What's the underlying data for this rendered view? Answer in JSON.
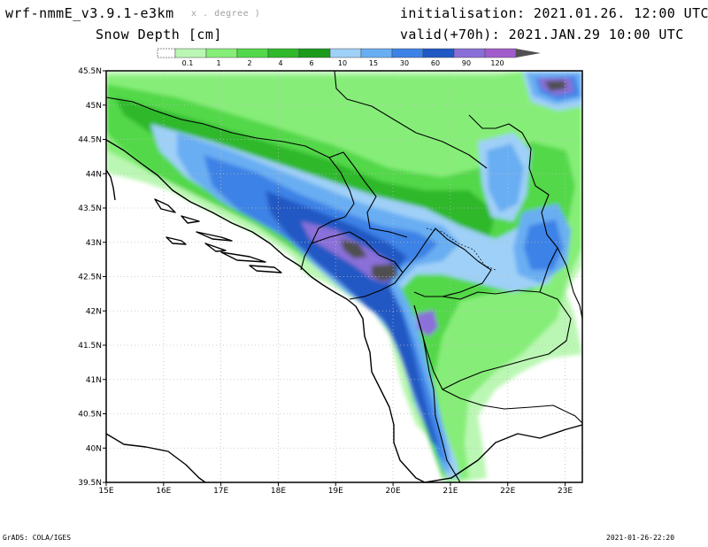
{
  "header": {
    "model": "wrf-nmmE_v3.9.1-e3km",
    "model_suffix": "x . degree )",
    "variable": "Snow Depth [cm]",
    "init_label": "initialisation:",
    "init_value": "2021.01.26.  12:00 UTC",
    "valid_label": "valid(+70h):",
    "valid_value": "2021.JAN.29  10:00 UTC"
  },
  "colorbar": {
    "levels": [
      "0.1",
      "1",
      "2",
      "4",
      "6",
      "10",
      "15",
      "30",
      "60",
      "90",
      "120"
    ],
    "colors": [
      "#bbf7b4",
      "#86ee78",
      "#52d84a",
      "#2fb82a",
      "#1c9a1c",
      "#9fd0f8",
      "#69aef2",
      "#3d82e6",
      "#2058c4",
      "#8a6fd8",
      "#a15ccc",
      "#505050"
    ],
    "below_color": "#ffffff",
    "above_color": "#505050"
  },
  "axes": {
    "x_ticks": [
      "15E",
      "16E",
      "17E",
      "18E",
      "19E",
      "20E",
      "21E",
      "22E",
      "23E"
    ],
    "y_ticks": [
      "45.5N",
      "45N",
      "44.5N",
      "44N",
      "43.5N",
      "43N",
      "42.5N",
      "42N",
      "41.5N",
      "41N",
      "40.5N",
      "40N",
      "39.5N"
    ]
  },
  "footer": {
    "left": "GrADS: COLA/IGES",
    "right": "2021-01-26-22:20"
  }
}
